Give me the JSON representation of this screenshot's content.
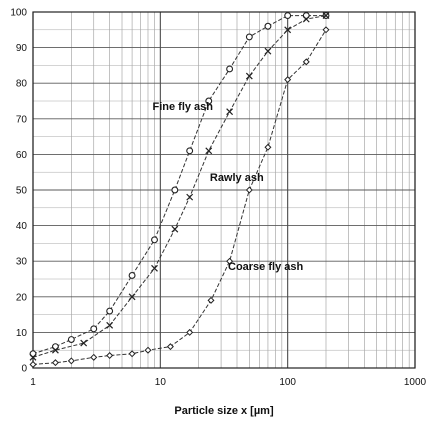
{
  "chart_data": {
    "type": "line",
    "title": "",
    "xlabel": "Particle size x [µm]",
    "ylabel": "",
    "x_scale": "log",
    "xlim": [
      1,
      1000
    ],
    "ylim": [
      0,
      100
    ],
    "x_ticks": [
      1,
      10,
      100,
      1000
    ],
    "x_tick_labels": [
      "1",
      "10",
      "100",
      "1000"
    ],
    "y_ticks": [
      0,
      10,
      20,
      30,
      40,
      50,
      60,
      70,
      80,
      90,
      100
    ],
    "y_tick_labels": [
      "0",
      "10",
      "20",
      "30",
      "40",
      "50",
      "60",
      "70",
      "80",
      "90",
      "100"
    ],
    "grid": true,
    "series": [
      {
        "name": "Fine fly ash",
        "marker": "circle",
        "x": [
          1,
          1.5,
          2,
          3,
          4,
          6,
          9,
          13,
          17,
          24,
          35,
          50,
          70,
          100,
          140,
          200
        ],
        "y": [
          4,
          6,
          8,
          11,
          16,
          26,
          36,
          50,
          61,
          75,
          84,
          93,
          96,
          99,
          99,
          99
        ]
      },
      {
        "name": "Rawly ash",
        "marker": "x",
        "x": [
          1,
          1.5,
          2.5,
          4,
          6,
          9,
          13,
          17,
          24,
          35,
          50,
          70,
          100,
          140,
          200
        ],
        "y": [
          3,
          5,
          7,
          12,
          20,
          28,
          39,
          48,
          61,
          72,
          82,
          89,
          95,
          98,
          99
        ]
      },
      {
        "name": "Coarse fly ash",
        "marker": "diamond",
        "x": [
          1,
          1.5,
          2,
          3,
          4,
          6,
          8,
          12,
          17,
          25,
          35,
          50,
          70,
          100,
          140,
          200
        ],
        "y": [
          1,
          1.5,
          2,
          3,
          3.5,
          4,
          5,
          6,
          10,
          19,
          30,
          50,
          62,
          81,
          86,
          95
        ]
      }
    ],
    "annotations": [
      {
        "text": "Fine fly ash",
        "series": "Fine fly ash"
      },
      {
        "text": "Rawly ash",
        "series": "Rawly ash"
      },
      {
        "text": "Coarse fly ash",
        "series": "Coarse fly ash"
      }
    ]
  }
}
